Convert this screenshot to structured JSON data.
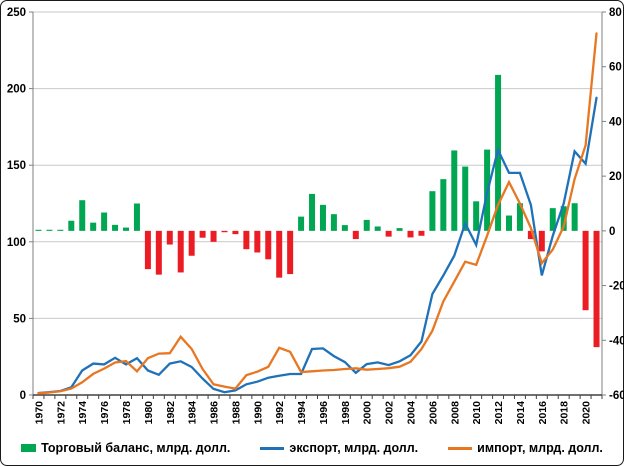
{
  "chart_data": {
    "type": "combo-bar-line",
    "start_year": 1970,
    "x_years": [
      1970,
      1971,
      1972,
      1973,
      1974,
      1975,
      1976,
      1977,
      1978,
      1979,
      1980,
      1981,
      1982,
      1983,
      1984,
      1985,
      1986,
      1987,
      1988,
      1989,
      1990,
      1991,
      1992,
      1993,
      1994,
      1995,
      1996,
      1997,
      1998,
      1999,
      2000,
      2001,
      2002,
      2003,
      2004,
      2005,
      2006,
      2007,
      2008,
      2009,
      2010,
      2011,
      2012,
      2013,
      2014,
      2015,
      2016,
      2017,
      2018,
      2019,
      2020,
      2021
    ],
    "x_tick_labels": [
      "1970",
      "1972",
      "1974",
      "1976",
      "1978",
      "1980",
      "1982",
      "1984",
      "1986",
      "1988",
      "1990",
      "1992",
      "1994",
      "1996",
      "1998",
      "2000",
      "2002",
      "2004",
      "2006",
      "2008",
      "2010",
      "2012",
      "2014",
      "2016",
      "2018",
      "2020"
    ],
    "series": [
      {
        "name": "Торговый баланс, млрд. долл.",
        "type": "bar",
        "axis": "right",
        "color_positive": "#00A651",
        "color_negative": "#EC1C24",
        "values": [
          0.4,
          0.4,
          0.4,
          3.7,
          11.2,
          3.0,
          6.7,
          2.2,
          1.2,
          10.0,
          -14,
          -16,
          -5,
          -15.2,
          -9.1,
          -2.5,
          -4,
          -0.5,
          -1.2,
          -6.7,
          -7.9,
          -10.4,
          -17.1,
          -15.8,
          5.2,
          13.5,
          9.5,
          6.1,
          2.1,
          -3.0,
          4.0,
          1.6,
          -2.1,
          1.0,
          -2.4,
          -1.8,
          14.5,
          18.9,
          29.4,
          23.5,
          10.8,
          29.7,
          57,
          5.6,
          10.1,
          -3.0,
          -7.5,
          8.3,
          9.0,
          10.1,
          -29,
          -42.5
        ]
      },
      {
        "name": "экспорт, млрд. долл.",
        "type": "line",
        "axis": "left",
        "color": "#1F72B8",
        "values": [
          1.3,
          1.8,
          2.6,
          5,
          16,
          20.5,
          20,
          24.3,
          20,
          24,
          16,
          13.2,
          20.5,
          22,
          18.3,
          10.7,
          4,
          1.8,
          3,
          7,
          8.7,
          11.3,
          12.6,
          13.7,
          13.7,
          30,
          30.4,
          25.4,
          21.5,
          14.5,
          20.2,
          21.3,
          19.5,
          22,
          26,
          35,
          66,
          78,
          91,
          112,
          98,
          132,
          160,
          145,
          145,
          124,
          78,
          104,
          125,
          159,
          151,
          194
        ]
      },
      {
        "name": "импорт, млрд. долл.",
        "type": "line",
        "axis": "left",
        "color": "#E87722",
        "values": [
          1.1,
          1.6,
          2.4,
          4.2,
          8.3,
          13.8,
          17.2,
          21.2,
          22.1,
          15.5,
          24,
          27,
          27.3,
          38,
          30,
          17,
          7,
          5.5,
          4.2,
          13,
          15.2,
          18.4,
          30.8,
          28.2,
          15,
          15.5,
          16,
          16.3,
          17,
          17.4,
          16.5,
          17,
          17.5,
          18.5,
          21.7,
          30,
          42,
          61,
          74,
          87,
          85,
          104,
          124,
          139,
          125,
          109,
          86,
          95,
          110,
          141,
          163,
          236
        ]
      }
    ],
    "axes": {
      "left": {
        "min": 0,
        "max": 250,
        "ticks": [
          0,
          50,
          100,
          150,
          200,
          250
        ]
      },
      "right": {
        "min": -60,
        "max": 80,
        "ticks": [
          -60,
          -40,
          -20,
          0,
          20,
          40,
          60,
          80
        ]
      }
    },
    "grid": true,
    "legend_position": "bottom"
  },
  "legend": {
    "items": [
      {
        "label": "Торговый баланс, млрд. долл.",
        "swatch": "green-rect"
      },
      {
        "label": "экспорт, млрд. долл.",
        "swatch": "blue-line"
      },
      {
        "label": "импорт, млрд. долл.",
        "swatch": "orange-line"
      }
    ]
  },
  "colors": {
    "balance_positive": "#00A651",
    "balance_negative": "#EC1C24",
    "export_line": "#1F72B8",
    "import_line": "#E87722",
    "gridline": "#C9C9C9",
    "axis_line": "#7F7F7F",
    "x_axis_line": "#404040",
    "text": "#000000"
  }
}
